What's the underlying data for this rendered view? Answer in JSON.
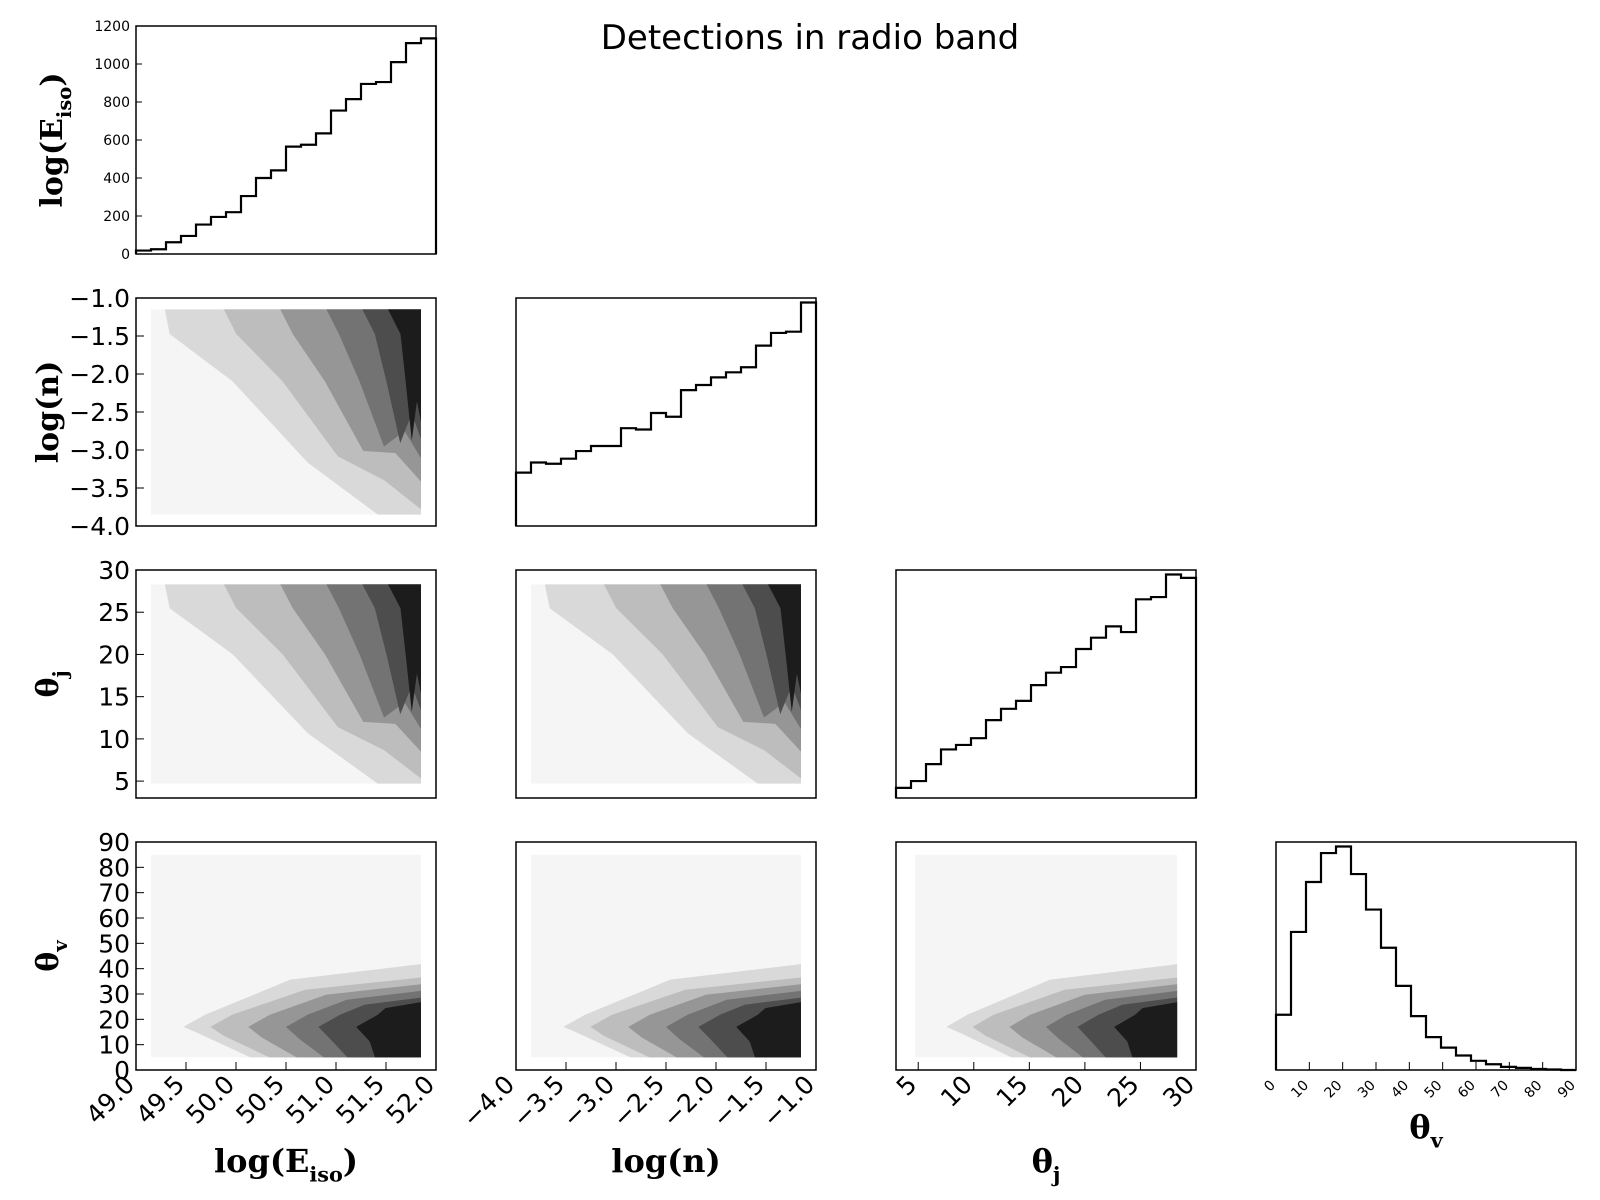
{
  "title": "Detections in radio band",
  "chart_data": {
    "type": "corner",
    "title": "Detections in radio band",
    "parameters": [
      {
        "key": "E",
        "label_base": "log(E",
        "label_sub": "iso",
        "label_end": ")",
        "range": [
          49.0,
          52.0
        ],
        "ticks": [
          49.0,
          49.5,
          50.0,
          50.5,
          51.0,
          51.5,
          52.0
        ],
        "tick_labels": [
          "49.0",
          "49.5",
          "50.0",
          "50.5",
          "51.0",
          "51.5",
          "52.0"
        ]
      },
      {
        "key": "n",
        "label_base": "log(n)",
        "label_sub": "",
        "label_end": "",
        "range": [
          -4.0,
          -1.0
        ],
        "ticks": [
          -4.0,
          -3.5,
          -3.0,
          -2.5,
          -2.0,
          -1.5,
          -1.0
        ],
        "tick_labels": [
          "−4.0",
          "−3.5",
          "−3.0",
          "−2.5",
          "−2.0",
          "−1.5",
          "−1.0"
        ]
      },
      {
        "key": "tj",
        "label_base": "θ",
        "label_sub": "j",
        "label_end": "",
        "range": [
          3,
          30
        ],
        "ticks": [
          5,
          10,
          15,
          20,
          25,
          30
        ],
        "tick_labels": [
          "5",
          "10",
          "15",
          "20",
          "25",
          "30"
        ]
      },
      {
        "key": "tv",
        "label_base": "θ",
        "label_sub": "v",
        "label_end": "",
        "range": [
          0,
          90
        ],
        "ticks": [
          0,
          10,
          20,
          30,
          40,
          50,
          60,
          70,
          80,
          90
        ],
        "tick_labels": [
          "0",
          "10",
          "20",
          "30",
          "40",
          "50",
          "60",
          "70",
          "80",
          "90"
        ]
      }
    ],
    "histograms": [
      {
        "param": "E",
        "ylim": [
          0,
          1200
        ],
        "yticks": [
          0,
          200,
          400,
          600,
          800,
          1000,
          1200
        ],
        "ytick_labels": [
          "0",
          "200",
          "400",
          "600",
          "800",
          "1000",
          "1200"
        ],
        "bin_edges": [
          49.0,
          49.15,
          49.3,
          49.45,
          49.6,
          49.75,
          49.9,
          50.05,
          50.2,
          50.35,
          50.5,
          50.65,
          50.8,
          50.95,
          51.1,
          51.25,
          51.4,
          51.55,
          51.7,
          51.85,
          52.0
        ],
        "counts": [
          18,
          25,
          62,
          95,
          155,
          195,
          220,
          305,
          400,
          440,
          565,
          575,
          635,
          755,
          815,
          895,
          905,
          1010,
          1110,
          1135
        ]
      },
      {
        "param": "n",
        "bin_edges": [
          -4.0,
          -3.85,
          -3.7,
          -3.55,
          -3.4,
          -3.25,
          -3.1,
          -2.95,
          -2.8,
          -2.65,
          -2.5,
          -2.35,
          -2.2,
          -2.05,
          -1.9,
          -1.75,
          -1.6,
          -1.45,
          -1.3,
          -1.15,
          -1.0
        ],
        "counts": [
          210,
          250,
          245,
          265,
          295,
          315,
          315,
          385,
          380,
          445,
          430,
          535,
          555,
          585,
          605,
          625,
          710,
          760,
          765,
          880
        ]
      },
      {
        "param": "tj",
        "bin_edges": [
          3,
          4.35,
          5.7,
          7.05,
          8.4,
          9.75,
          11.1,
          12.45,
          13.8,
          15.15,
          16.5,
          17.85,
          19.2,
          20.55,
          21.9,
          23.25,
          24.6,
          25.95,
          27.3,
          28.65,
          30
        ],
        "counts": [
          45,
          75,
          150,
          215,
          235,
          265,
          345,
          395,
          430,
          500,
          555,
          580,
          660,
          710,
          760,
          735,
          880,
          890,
          990,
          975
        ]
      },
      {
        "param": "tv",
        "bin_edges": [
          0,
          4.5,
          9,
          13.5,
          18,
          22.5,
          27,
          31.5,
          36,
          40.5,
          45,
          49.5,
          54,
          58.5,
          63,
          67.5,
          72,
          76.5,
          81,
          85.5,
          90
        ],
        "counts": [
          210,
          525,
          715,
          825,
          850,
          745,
          610,
          465,
          320,
          205,
          125,
          85,
          55,
          35,
          22,
          12,
          8,
          4,
          2,
          0
        ]
      }
    ],
    "contour_panels": [
      {
        "x": "E",
        "y": "n",
        "direction": "up-right"
      },
      {
        "x": "E",
        "y": "tj",
        "direction": "up-right"
      },
      {
        "x": "n",
        "y": "tj",
        "direction": "up-right"
      },
      {
        "x": "E",
        "y": "tv",
        "direction": "right-peak-low"
      },
      {
        "x": "n",
        "y": "tv",
        "direction": "right-peak-low"
      },
      {
        "x": "tj",
        "y": "tv",
        "direction": "right-peak-low"
      }
    ],
    "contour_levels": 6,
    "contour_colors": [
      "#f5f5f5",
      "#d9d9d9",
      "#bdbdbd",
      "#969696",
      "#737373",
      "#4d4d4d",
      "#1c1c1c"
    ]
  }
}
